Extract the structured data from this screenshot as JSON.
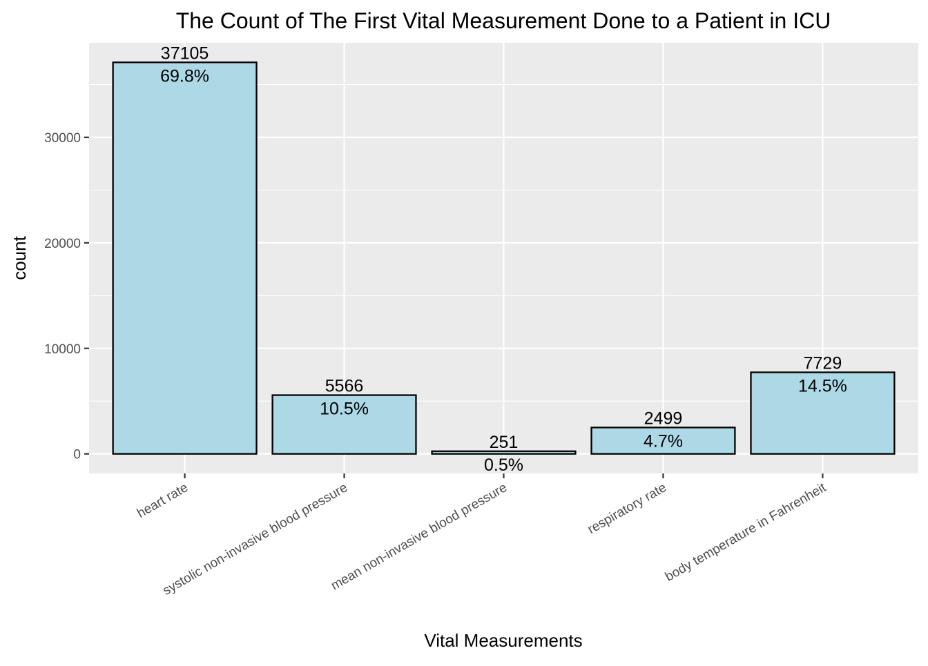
{
  "chart_data": {
    "type": "bar",
    "title": "The Count of The First Vital Measurement Done to a Patient in ICU",
    "xlabel": "Vital Measurements",
    "ylabel": "count",
    "categories": [
      "heart rate",
      "systolic non-invasive blood pressure",
      "mean non-invasive blood pressure",
      "respiratory rate",
      "body temperature in Fahrenheit"
    ],
    "values": [
      37105,
      5566,
      251,
      2499,
      7729
    ],
    "count_labels": [
      "37105",
      "5566",
      "251",
      "2499",
      "7729"
    ],
    "percent_labels": [
      "69.8%",
      "10.5%",
      "0.5%",
      "4.7%",
      "14.5%"
    ],
    "y_ticks": [
      0,
      10000,
      20000,
      30000
    ],
    "y_tick_labels": [
      "0",
      "10000",
      "20000",
      "30000"
    ],
    "ylim": [
      -1855,
      38960
    ],
    "grid": true,
    "legend": "none",
    "colors": {
      "bar_fill": "#ADD8E6",
      "bar_stroke": "#000000",
      "panel_background": "#EBEBEB",
      "grid": "#FFFFFF",
      "tick": "#333333",
      "tick_text": "#4D4D4D"
    }
  }
}
